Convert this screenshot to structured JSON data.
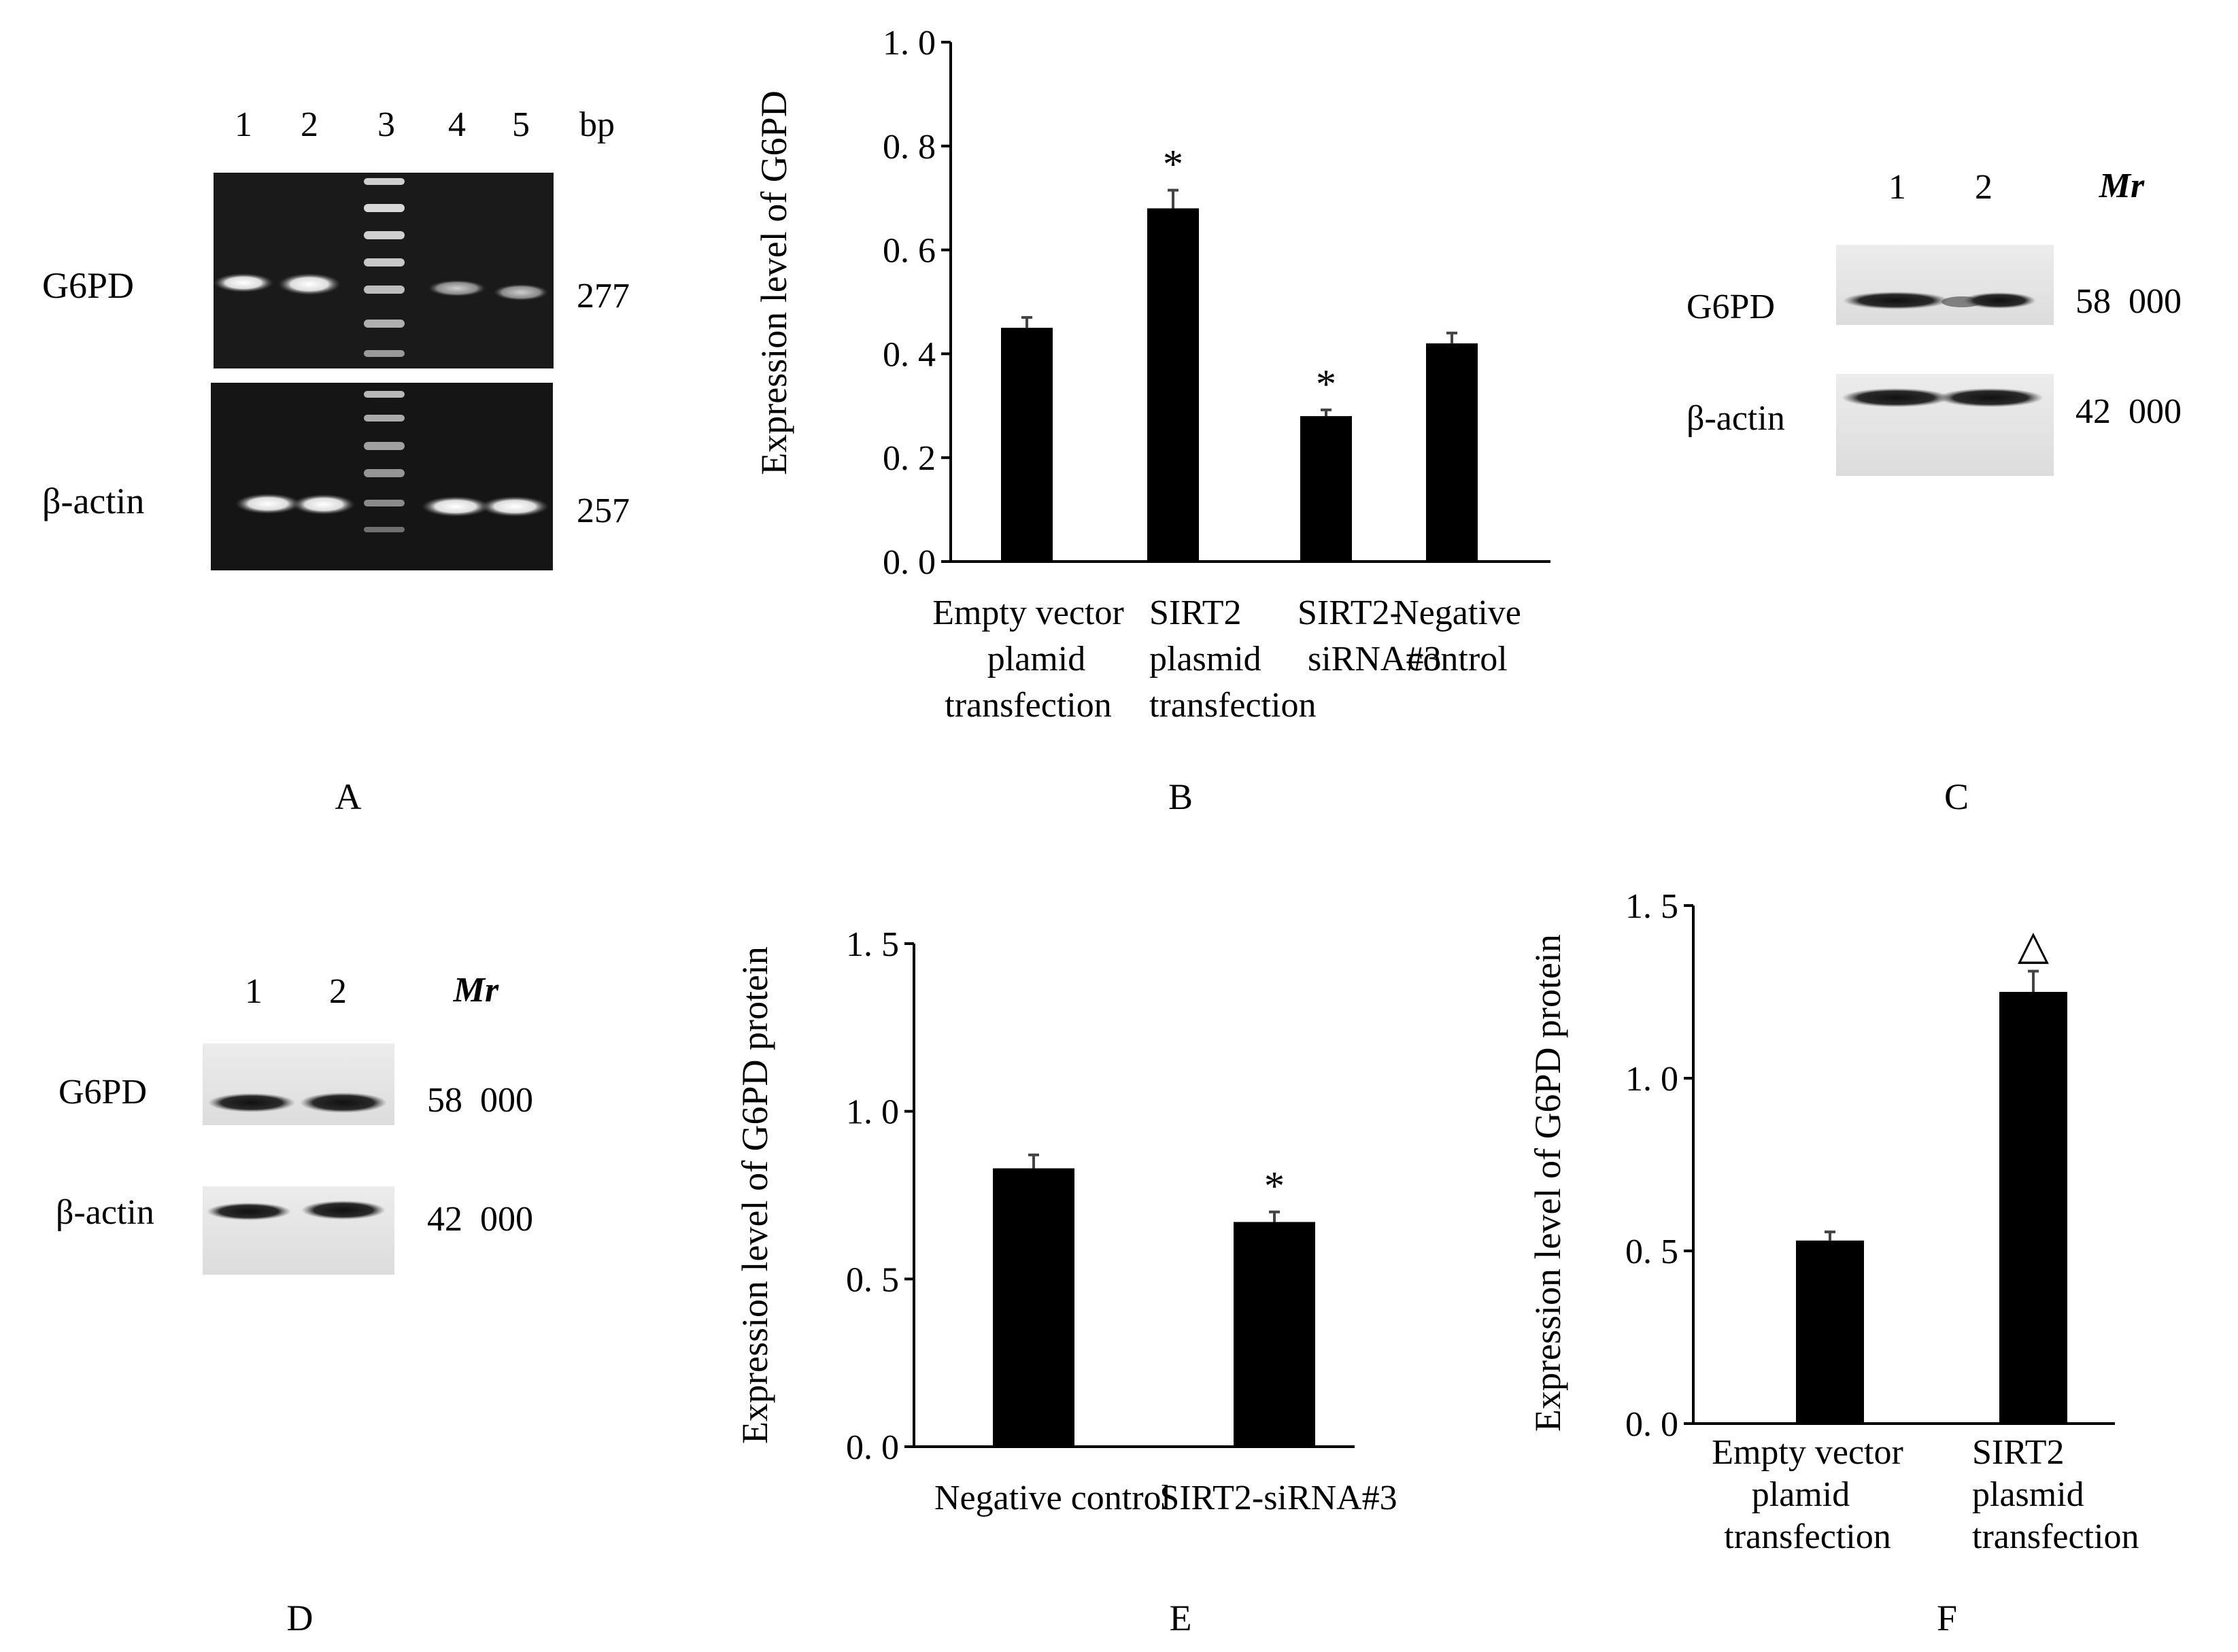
{
  "panel_letters": [
    "A",
    "B",
    "C",
    "D",
    "E",
    "F"
  ],
  "panel_a": {
    "lanes": [
      "1",
      "2",
      "3",
      "4",
      "5"
    ],
    "size_header": "bp",
    "rows": [
      {
        "label": "G6PD",
        "size": "277"
      },
      {
        "label": "β-actin",
        "size": "257"
      }
    ]
  },
  "panel_c": {
    "lanes": [
      "1",
      "2"
    ],
    "size_header": "Mr",
    "rows": [
      {
        "label": "G6PD",
        "size": "58  000"
      },
      {
        "label": "β-actin",
        "size": "42  000"
      }
    ]
  },
  "panel_d": {
    "lanes": [
      "1",
      "2"
    ],
    "size_header": "Mr",
    "rows": [
      {
        "label": "G6PD",
        "size": "58  000"
      },
      {
        "label": "β-actin",
        "size": "42  000"
      }
    ]
  },
  "chart_data": [
    {
      "panel": "B",
      "type": "bar",
      "ylabel": "Expression level of G6PD",
      "ylim": [
        0,
        1.0
      ],
      "yticks": [
        "0. 0",
        "0. 2",
        "0. 4",
        "0. 6",
        "0. 8",
        "1. 0"
      ],
      "tick_values": [
        0,
        0.2,
        0.4,
        0.6,
        0.8,
        1.0
      ],
      "categories": [
        [
          "Empty vector",
          "plamid",
          "transfection"
        ],
        [
          "SIRT2",
          "plasmid",
          "transfection"
        ],
        [
          "SIRT2-",
          "siRNA#3"
        ],
        [
          "Negative",
          "control"
        ]
      ],
      "values": [
        0.45,
        0.68,
        0.28,
        0.42
      ],
      "errors": [
        0.02,
        0.035,
        0.012,
        0.02
      ],
      "markers": [
        "",
        "*",
        "*",
        ""
      ]
    },
    {
      "panel": "E",
      "type": "bar",
      "ylabel": "Expression level of G6PD protein",
      "ylim": [
        0,
        1.5
      ],
      "yticks": [
        "0. 0",
        "0. 5",
        "1. 0",
        "1. 5"
      ],
      "tick_values": [
        0,
        0.5,
        1.0,
        1.5
      ],
      "categories": [
        [
          "Negative control"
        ],
        [
          "SIRT2-siRNA#3"
        ]
      ],
      "values": [
        0.83,
        0.67
      ],
      "errors": [
        0.04,
        0.03
      ],
      "markers": [
        "",
        "*"
      ]
    },
    {
      "panel": "F",
      "type": "bar",
      "ylabel": "Expression level of G6PD protein",
      "ylim": [
        0,
        1.5
      ],
      "yticks": [
        "0. 0",
        "0. 5",
        "1. 0",
        "1. 5"
      ],
      "tick_values": [
        0,
        0.5,
        1.0,
        1.5
      ],
      "categories": [
        [
          "Empty vector",
          "plamid",
          "transfection"
        ],
        [
          "SIRT2",
          "plasmid",
          "transfection"
        ]
      ],
      "values": [
        0.53,
        1.25
      ],
      "errors": [
        0.025,
        0.06
      ],
      "markers": [
        "",
        "△"
      ]
    }
  ]
}
